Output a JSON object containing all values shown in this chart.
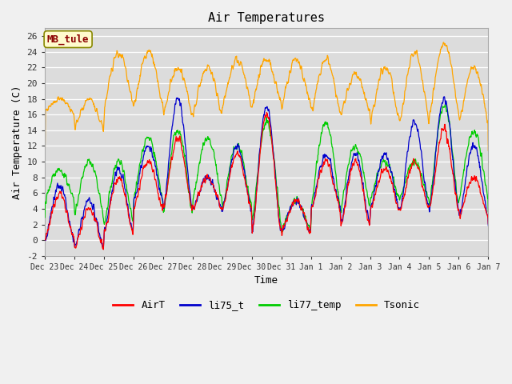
{
  "title": "Air Temperatures",
  "xlabel": "Time",
  "ylabel": "Air Temperature (C)",
  "ylim": [
    -2,
    27
  ],
  "yticks": [
    -2,
    0,
    2,
    4,
    6,
    8,
    10,
    12,
    14,
    16,
    18,
    20,
    22,
    24,
    26
  ],
  "x_tick_labels": [
    "Dec 23",
    "Dec 24",
    "Dec 25",
    "Dec 26",
    "Dec 27",
    "Dec 28",
    "Dec 29",
    "Dec 30",
    "Dec 31",
    "Jan 1",
    "Jan 2",
    "Jan 3",
    "Jan 4",
    "Jan 5",
    "Jan 6",
    "Jan 7"
  ],
  "annotation_text": "MB_tule",
  "annotation_color": "#8B0000",
  "annotation_bg": "#FFFACD",
  "annotation_border": "#888800",
  "legend_entries": [
    "AirT",
    "li75_t",
    "li77_temp",
    "Tsonic"
  ],
  "line_colors": [
    "#FF0000",
    "#0000CC",
    "#00CC00",
    "#FFA500"
  ],
  "background_color": "#DCDCDC",
  "title_bg": "#FFFFFF",
  "grid_color": "#FFFFFF",
  "font_family": "DejaVu Sans Mono"
}
